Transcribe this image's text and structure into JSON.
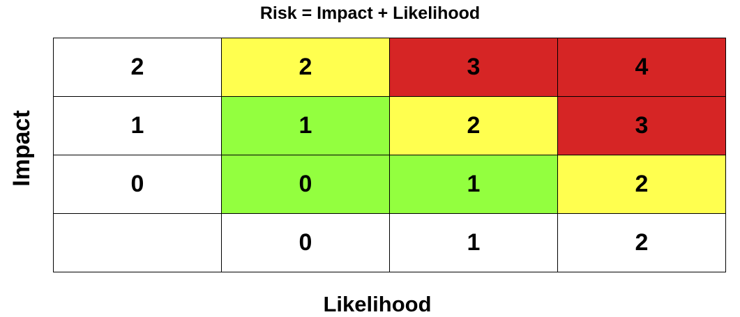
{
  "title": "Risk = Impact + Likelihood",
  "y_axis_label": "Impact",
  "x_axis_label": "Likelihood",
  "colors": {
    "none": "#ffffff",
    "low": "#93ff3f",
    "medium": "#ffff4f",
    "high": "#d62525"
  },
  "matrix": {
    "rows": [
      {
        "impact": "2",
        "cells": [
          {
            "value": "2",
            "level": "medium"
          },
          {
            "value": "3",
            "level": "high"
          },
          {
            "value": "4",
            "level": "high"
          }
        ]
      },
      {
        "impact": "1",
        "cells": [
          {
            "value": "1",
            "level": "low"
          },
          {
            "value": "2",
            "level": "medium"
          },
          {
            "value": "3",
            "level": "high"
          }
        ]
      },
      {
        "impact": "0",
        "cells": [
          {
            "value": "0",
            "level": "low"
          },
          {
            "value": "1",
            "level": "low"
          },
          {
            "value": "2",
            "level": "medium"
          }
        ]
      }
    ],
    "likelihood_values": [
      "0",
      "1",
      "2"
    ]
  }
}
